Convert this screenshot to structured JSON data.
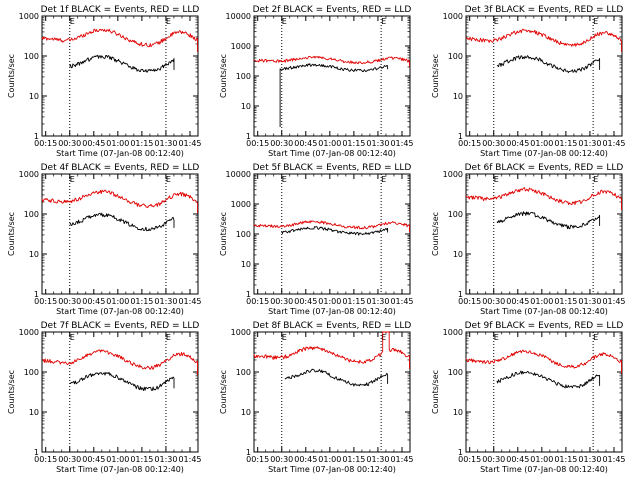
{
  "figure": {
    "colors": {
      "events": "#000000",
      "lld": "#e00000",
      "axes": "#000000",
      "background": "#ffffff"
    }
  },
  "chart_data": [
    {
      "type": "line",
      "title": "Det 1f BLACK = Events, RED = LLD",
      "xlabel": "Start Time (07-Jan-08 00:12:40)",
      "ylabel": "Counts/sec",
      "yscale": "log",
      "ylim": [
        1,
        1000
      ],
      "y_ticks": [
        "1",
        "10",
        "100",
        "1000"
      ],
      "x_ticks": [
        "00:15",
        "00:30",
        "00:45",
        "01:00",
        "01:15",
        "01:30",
        "01:45"
      ],
      "xlim_minutes": [
        12.7,
        110
      ],
      "markers": [
        {
          "label": "E",
          "x_minutes": 30
        },
        {
          "label": "E",
          "x_minutes": 90
        }
      ],
      "series": [
        {
          "color": "red",
          "start": 0,
          "end": 110,
          "base": 180,
          "amp": 2.5,
          "spike": null
        },
        {
          "color": "black",
          "start": 30,
          "end": 95,
          "base": 40,
          "amp": 2.4,
          "spike": null
        }
      ]
    },
    {
      "type": "line",
      "title": "Det 2f BLACK = Events, RED = LLD",
      "xlabel": "Start Time (07-Jan-08 00:12:40)",
      "ylabel": "Counts/sec",
      "yscale": "log",
      "ylim": [
        1,
        10000
      ],
      "y_ticks": [
        "1",
        "10",
        "100",
        "1000",
        "10000"
      ],
      "x_ticks": [
        "00:15",
        "00:30",
        "00:45",
        "01:00",
        "01:15",
        "01:30",
        "01:45"
      ],
      "xlim_minutes": [
        12.7,
        110
      ],
      "markers": [
        {
          "label": "E",
          "x_minutes": 30
        },
        {
          "label": "E",
          "x_minutes": 92
        }
      ],
      "series": [
        {
          "color": "red",
          "start": 0,
          "end": 110,
          "base": 280,
          "amp": 1.5,
          "spike": null
        },
        {
          "color": "black",
          "start": 29,
          "end": 96,
          "base": 150,
          "amp": 1.6,
          "spike": {
            "x": 29,
            "to": 2
          }
        }
      ]
    },
    {
      "type": "line",
      "title": "Det 3f BLACK = Events, RED = LLD",
      "xlabel": "Start Time (07-Jan-08 00:12:40)",
      "ylabel": "Counts/sec",
      "yscale": "log",
      "ylim": [
        1,
        1000
      ],
      "y_ticks": [
        "1",
        "10",
        "100",
        "1000"
      ],
      "x_ticks": [
        "00:15",
        "00:30",
        "00:45",
        "01:00",
        "01:15",
        "01:30",
        "01:45"
      ],
      "xlim_minutes": [
        12.7,
        110
      ],
      "markers": [
        {
          "label": "E",
          "x_minutes": 30
        },
        {
          "label": "E",
          "x_minutes": 92
        }
      ],
      "series": [
        {
          "color": "red",
          "start": 0,
          "end": 110,
          "base": 180,
          "amp": 2.4,
          "spike": null
        },
        {
          "color": "black",
          "start": 32,
          "end": 96,
          "base": 40,
          "amp": 2.4,
          "spike": null
        }
      ]
    },
    {
      "type": "line",
      "title": "Det 4f BLACK = Events, RED = LLD",
      "xlabel": "Start Time (07-Jan-08 00:12:40)",
      "ylabel": "Counts/sec",
      "yscale": "log",
      "ylim": [
        1,
        1000
      ],
      "y_ticks": [
        "1",
        "10",
        "100",
        "1000"
      ],
      "x_ticks": [
        "00:15",
        "00:30",
        "00:45",
        "01:00",
        "01:15",
        "01:30",
        "01:45"
      ],
      "xlim_minutes": [
        12.7,
        110
      ],
      "markers": [
        {
          "label": "E",
          "x_minutes": 30
        },
        {
          "label": "E",
          "x_minutes": 90
        }
      ],
      "series": [
        {
          "color": "red",
          "start": 0,
          "end": 110,
          "base": 150,
          "amp": 2.4,
          "spike": null
        },
        {
          "color": "black",
          "start": 30,
          "end": 95,
          "base": 40,
          "amp": 2.4,
          "spike": null
        }
      ]
    },
    {
      "type": "line",
      "title": "Det 5f BLACK = Events, RED = LLD",
      "xlabel": "Start Time (07-Jan-08 00:12:40)",
      "ylabel": "Counts/sec",
      "yscale": "log",
      "ylim": [
        1,
        10000
      ],
      "y_ticks": [
        "1",
        "10",
        "100",
        "1000",
        "10000"
      ],
      "x_ticks": [
        "00:15",
        "00:30",
        "00:45",
        "01:00",
        "01:15",
        "01:30",
        "01:45"
      ],
      "xlim_minutes": [
        12.7,
        110
      ],
      "markers": [
        {
          "label": "E",
          "x_minutes": 30
        },
        {
          "label": "E",
          "x_minutes": 92
        }
      ],
      "series": [
        {
          "color": "red",
          "start": 0,
          "end": 110,
          "base": 160,
          "amp": 1.6,
          "spike": null
        },
        {
          "color": "black",
          "start": 30,
          "end": 96,
          "base": 100,
          "amp": 1.6,
          "spike": null
        }
      ]
    },
    {
      "type": "line",
      "title": "Det 6f BLACK = Events, RED = LLD",
      "xlabel": "Start Time (07-Jan-08 00:12:40)",
      "ylabel": "Counts/sec",
      "yscale": "log",
      "ylim": [
        1,
        1000
      ],
      "y_ticks": [
        "1",
        "10",
        "100",
        "1000"
      ],
      "x_ticks": [
        "00:15",
        "00:30",
        "00:45",
        "01:00",
        "01:15",
        "01:30",
        "01:45"
      ],
      "xlim_minutes": [
        12.7,
        110
      ],
      "markers": [
        {
          "label": "E",
          "x_minutes": 30
        },
        {
          "label": "E",
          "x_minutes": 92
        }
      ],
      "series": [
        {
          "color": "red",
          "start": 0,
          "end": 110,
          "base": 180,
          "amp": 2.3,
          "spike": null
        },
        {
          "color": "black",
          "start": 32,
          "end": 96,
          "base": 45,
          "amp": 2.3,
          "spike": null
        }
      ]
    },
    {
      "type": "line",
      "title": "Det 7f BLACK = Events, RED = LLD",
      "xlabel": "Start Time (07-Jan-08 00:12:40)",
      "ylabel": "Counts/sec",
      "yscale": "log",
      "ylim": [
        1,
        1000
      ],
      "y_ticks": [
        "1",
        "10",
        "100",
        "1000"
      ],
      "x_ticks": [
        "00:15",
        "00:30",
        "00:45",
        "01:00",
        "01:15",
        "01:30",
        "01:45"
      ],
      "xlim_minutes": [
        12.7,
        110
      ],
      "markers": [
        {
          "label": "E",
          "x_minutes": 30
        },
        {
          "label": "E",
          "x_minutes": 90
        }
      ],
      "series": [
        {
          "color": "red",
          "start": 0,
          "end": 110,
          "base": 120,
          "amp": 2.7,
          "spike": null
        },
        {
          "color": "black",
          "start": 30,
          "end": 95,
          "base": 35,
          "amp": 2.7,
          "spike": null
        }
      ]
    },
    {
      "type": "line",
      "title": "Det 8f BLACK = Events, RED = LLD",
      "xlabel": "Start Time (07-Jan-08 00:12:40)",
      "ylabel": "Counts/sec",
      "yscale": "log",
      "ylim": [
        1,
        1000
      ],
      "y_ticks": [
        "1",
        "10",
        "100",
        "1000"
      ],
      "x_ticks": [
        "00:15",
        "00:30",
        "00:45",
        "01:00",
        "01:15",
        "01:30",
        "01:45"
      ],
      "xlim_minutes": [
        12.7,
        110
      ],
      "markers": [
        {
          "label": "E",
          "x_minutes": 30
        },
        {
          "label": "E",
          "x_minutes": 92
        }
      ],
      "series": [
        {
          "color": "red",
          "start": 0,
          "end": 110,
          "base": 170,
          "amp": 2.4,
          "spike": {
            "x": 93,
            "to": 1000,
            "width": 4
          }
        },
        {
          "color": "black",
          "start": 32,
          "end": 96,
          "base": 45,
          "amp": 2.4,
          "spike": null
        }
      ]
    },
    {
      "type": "line",
      "title": "Det 9f BLACK = Events, RED = LLD",
      "xlabel": "Start Time (07-Jan-08 00:12:40)",
      "ylabel": "Counts/sec",
      "yscale": "log",
      "ylim": [
        1,
        1000
      ],
      "y_ticks": [
        "1",
        "10",
        "100",
        "1000"
      ],
      "x_ticks": [
        "00:15",
        "00:30",
        "00:45",
        "01:00",
        "01:15",
        "01:30",
        "01:45"
      ],
      "xlim_minutes": [
        12.7,
        110
      ],
      "markers": [
        {
          "label": "E",
          "x_minutes": 30
        },
        {
          "label": "E",
          "x_minutes": 92
        }
      ],
      "series": [
        {
          "color": "red",
          "start": 0,
          "end": 110,
          "base": 130,
          "amp": 2.5,
          "spike": null
        },
        {
          "color": "black",
          "start": 32,
          "end": 96,
          "base": 40,
          "amp": 2.5,
          "spike": null
        }
      ]
    }
  ]
}
